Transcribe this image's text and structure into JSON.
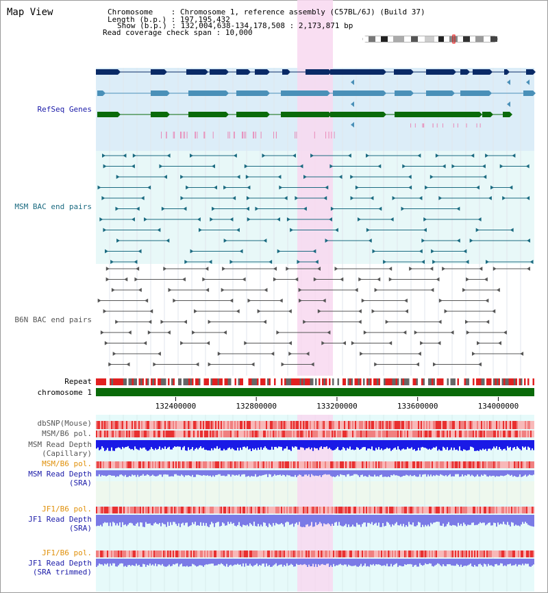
{
  "title": "Map View",
  "header": {
    "chromosome_label": "Chromosome",
    "chromosome_value": "Chromosome 1, reference assembly (C57BL/6J) (Build 37)",
    "length_label": "Length (b.p.)",
    "length_value": "197,195,432",
    "show_label": "Show (b.p.)",
    "show_value": "132,004,638-134,178,508 : 2,173,871 bp",
    "coverage_label": "Read coverage check span",
    "coverage_value": "10,000"
  },
  "tracks": {
    "refseq": "RefSeq Genes",
    "msm_bac": "MSM BAC end pairs",
    "b6n_bac": "B6N BAC end pairs",
    "repeat": "Repeat",
    "chromosome": "chromosome 1",
    "dbsnp": "dbSNP(Mouse)",
    "msm_b6_pol_1": "MSM/B6 pol.",
    "msm_depth_cap_1": "MSM Read Depth",
    "msm_depth_cap_2": "(Capillary)",
    "msm_b6_pol_2": "MSM/B6 pol.",
    "msm_depth_sra_1": "MSM Read Depth",
    "msm_depth_sra_2": "(SRA)",
    "jf1_b6_pol_1": "JF1/B6 pol.",
    "jf1_depth_sra_1": "JF1 Read Depth",
    "jf1_depth_sra_2": "(SRA)",
    "jf1_b6_pol_2": "JF1/B6 pol.",
    "jf1_depth_trim_1": "JF1 Read Depth",
    "jf1_depth_trim_2": "(SRA trimmed)"
  },
  "axis": {
    "ticks": [
      {
        "value": 132400000,
        "label": "132400000"
      },
      {
        "value": 132800000,
        "label": "132800000"
      },
      {
        "value": 133200000,
        "label": "133200000"
      },
      {
        "value": 133600000,
        "label": "133600000"
      },
      {
        "value": 134000000,
        "label": "134000000"
      }
    ]
  },
  "colors": {
    "refseq_bg": "#dcedf8",
    "msm_bg": "#e8f8f8",
    "highlight": "#f8d8f0",
    "gene_dark": "#0a2a66",
    "gene_mid": "#4a90b8",
    "gene_green": "#0a6a0a",
    "msm_line": "#1a6a80",
    "b6n_line": "#555555",
    "chrom_green": "#0a6a0a",
    "depth_blue": "#1a1ae6",
    "depth_light": "#7a7ae6"
  }
}
